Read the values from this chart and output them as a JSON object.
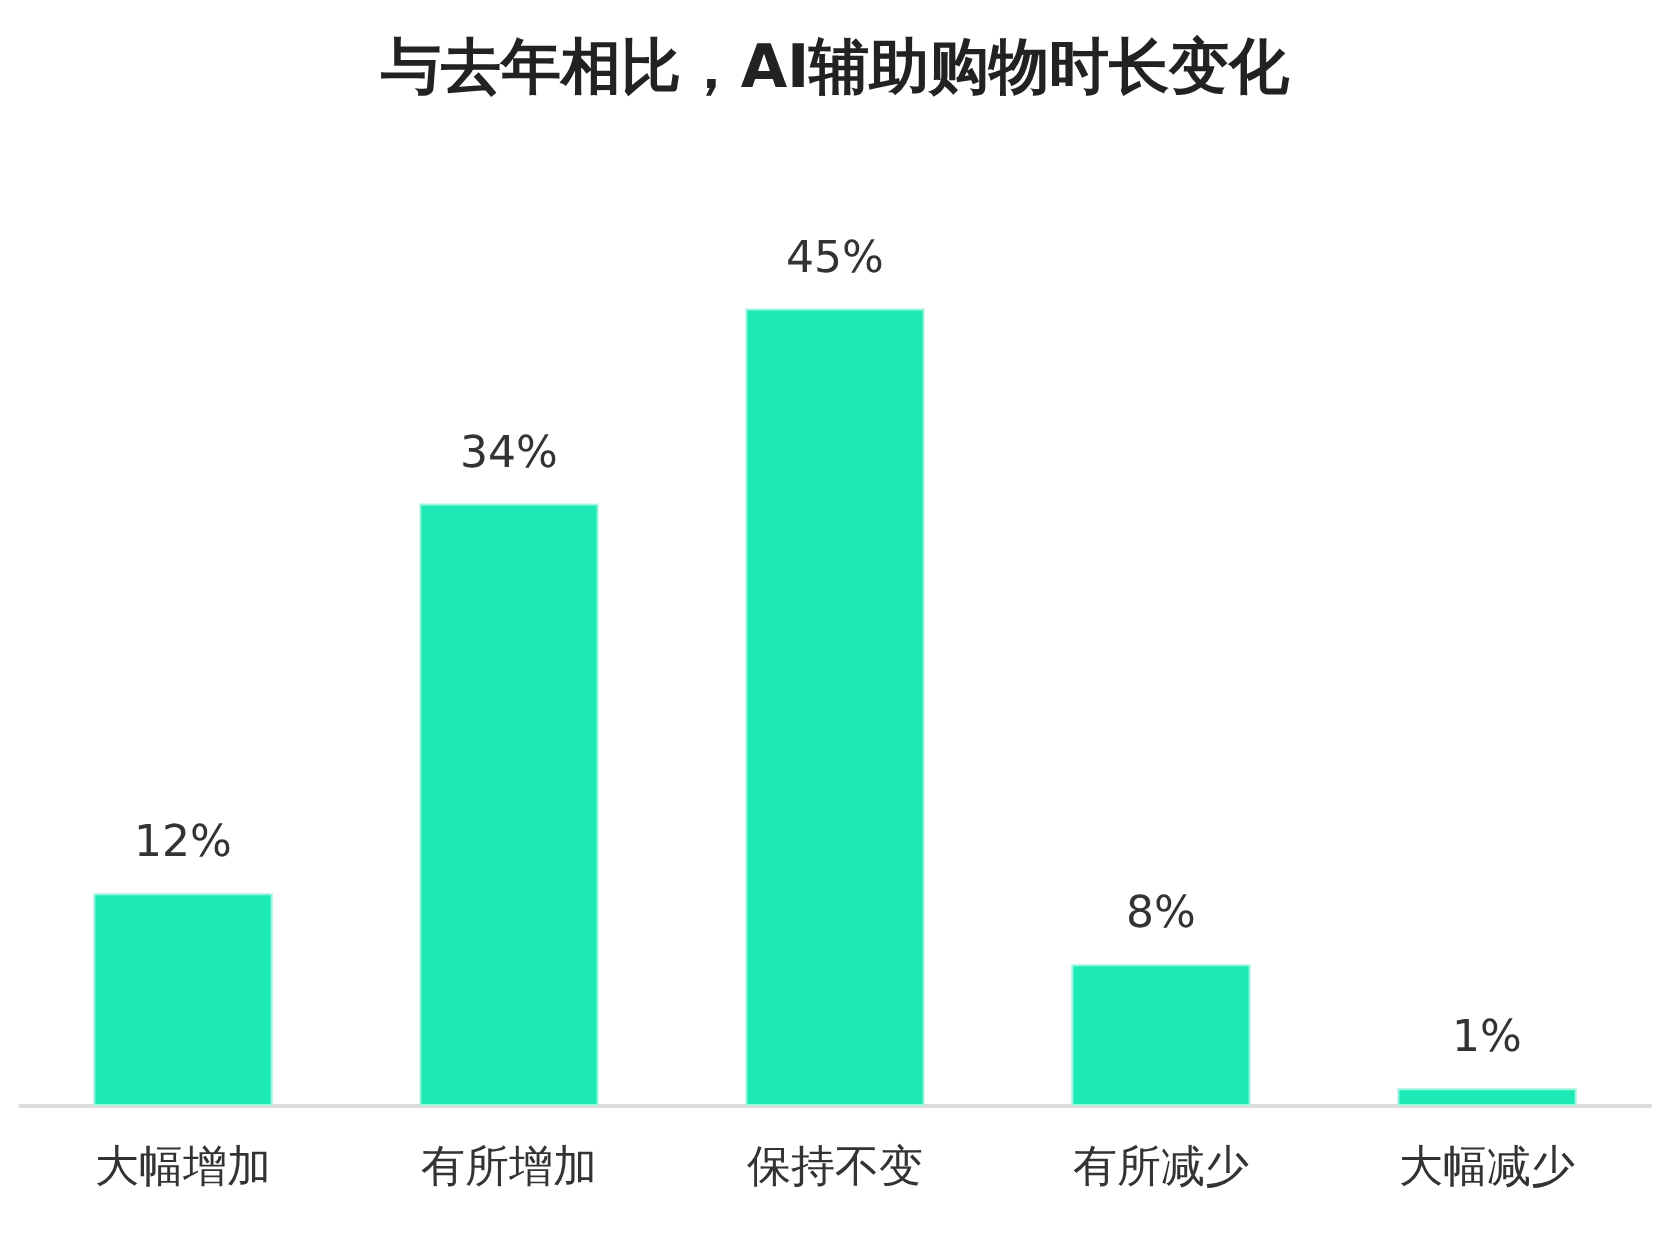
{
  "chart_data": {
    "type": "bar",
    "title": "与去年相比，AI辅助购物时长变化",
    "categories": [
      "大幅增加",
      "有所增加",
      "保持不变",
      "有所减少",
      "大幅减少"
    ],
    "values": [
      12,
      34,
      45,
      8,
      1
    ],
    "value_labels": [
      "12%",
      "34%",
      "45%",
      "8%",
      "1%"
    ],
    "color": "#1de9b6"
  }
}
